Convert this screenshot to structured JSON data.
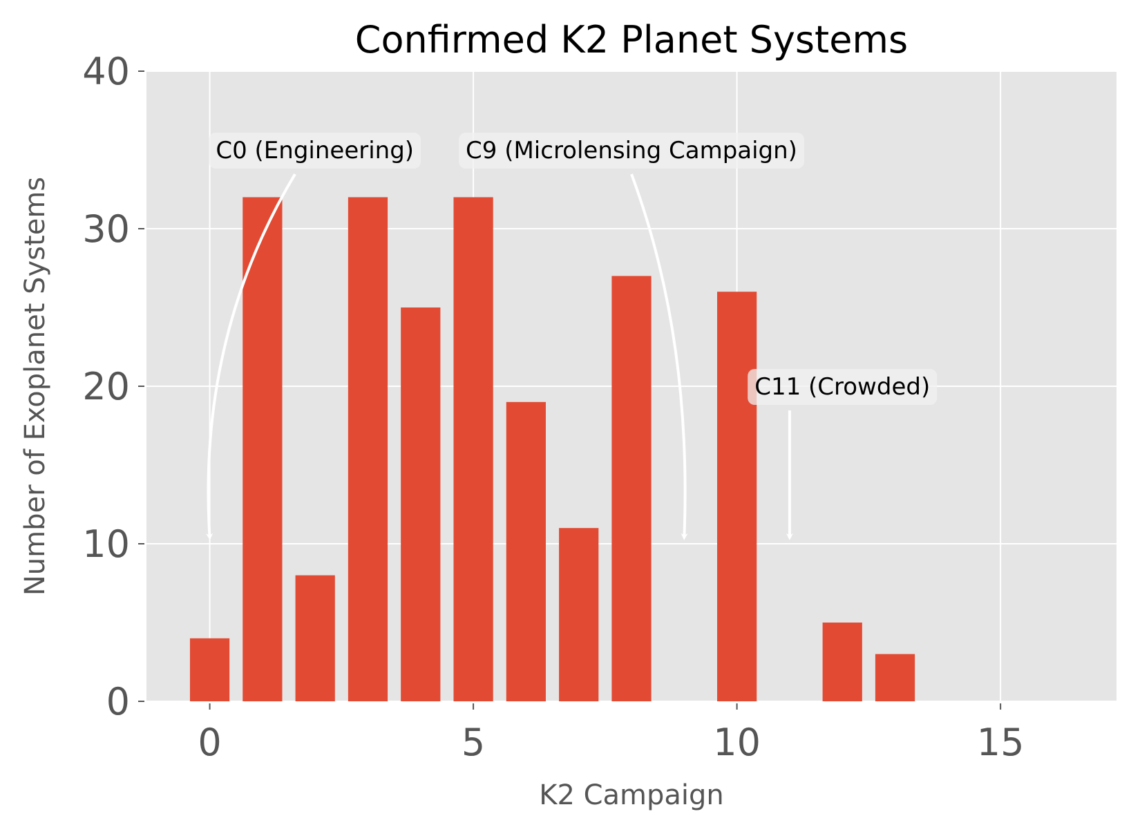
{
  "chart_data": {
    "type": "bar",
    "title": "Confirmed K2 Planet Systems",
    "xlabel": "K2 Campaign",
    "ylabel": "Number of Exoplanet Systems",
    "x": [
      0,
      1,
      2,
      3,
      4,
      5,
      6,
      7,
      8,
      10,
      12,
      13
    ],
    "values": [
      4,
      32,
      8,
      32,
      25,
      32,
      19,
      11,
      27,
      26,
      5,
      3
    ],
    "xlim": [
      -1.2,
      17.2
    ],
    "ylim": [
      0,
      40
    ],
    "xticks": [
      0,
      5,
      10,
      15
    ],
    "yticks": [
      0,
      10,
      20,
      30,
      40
    ],
    "grid": true,
    "colors": {
      "bar": "#E24A33",
      "plot_background": "#E5E5E5",
      "grid": "#FFFFFF",
      "tick_text": "#555555",
      "annotation_box": "#F0F0F0"
    },
    "annotations": [
      {
        "text": "C0 (Engineering)",
        "text_x": 1.994,
        "text_y": 35,
        "target_x": 0,
        "target_y": 10.4
      },
      {
        "text": "C9 (Microlensing Campaign)",
        "text_x": 8.0,
        "text_y": 35,
        "target_x": 9,
        "target_y": 10.4
      },
      {
        "text": "C11 (Crowded)",
        "text_x": 12.0,
        "text_y": 20,
        "target_x": 11,
        "target_y": 10.4
      }
    ]
  }
}
